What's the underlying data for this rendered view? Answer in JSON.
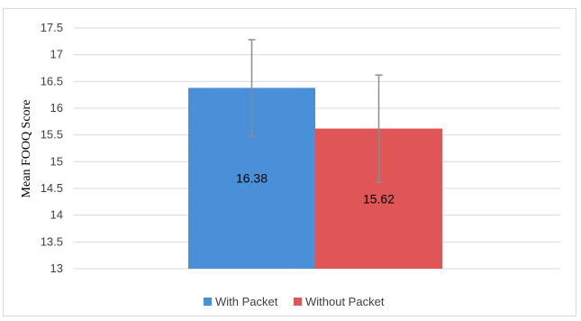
{
  "chart_data": {
    "type": "bar",
    "categories": [
      ""
    ],
    "series": [
      {
        "name": "With Packet",
        "values": [
          16.38
        ],
        "error": [
          0.9
        ],
        "color": "#4a90d9",
        "data_label": "16.38"
      },
      {
        "name": "Without Packet",
        "values": [
          15.62
        ],
        "error": [
          1.0
        ],
        "color": "#e05555",
        "data_label": "15.62"
      }
    ],
    "ylabel": "Mean FOOQ Score",
    "ylim": [
      13,
      17.5
    ],
    "yticks": [
      "13",
      "13.5",
      "14",
      "14.5",
      "15",
      "15.5",
      "16",
      "16.5",
      "17",
      "17.5"
    ],
    "grid": true,
    "legend_position": "bottom"
  }
}
